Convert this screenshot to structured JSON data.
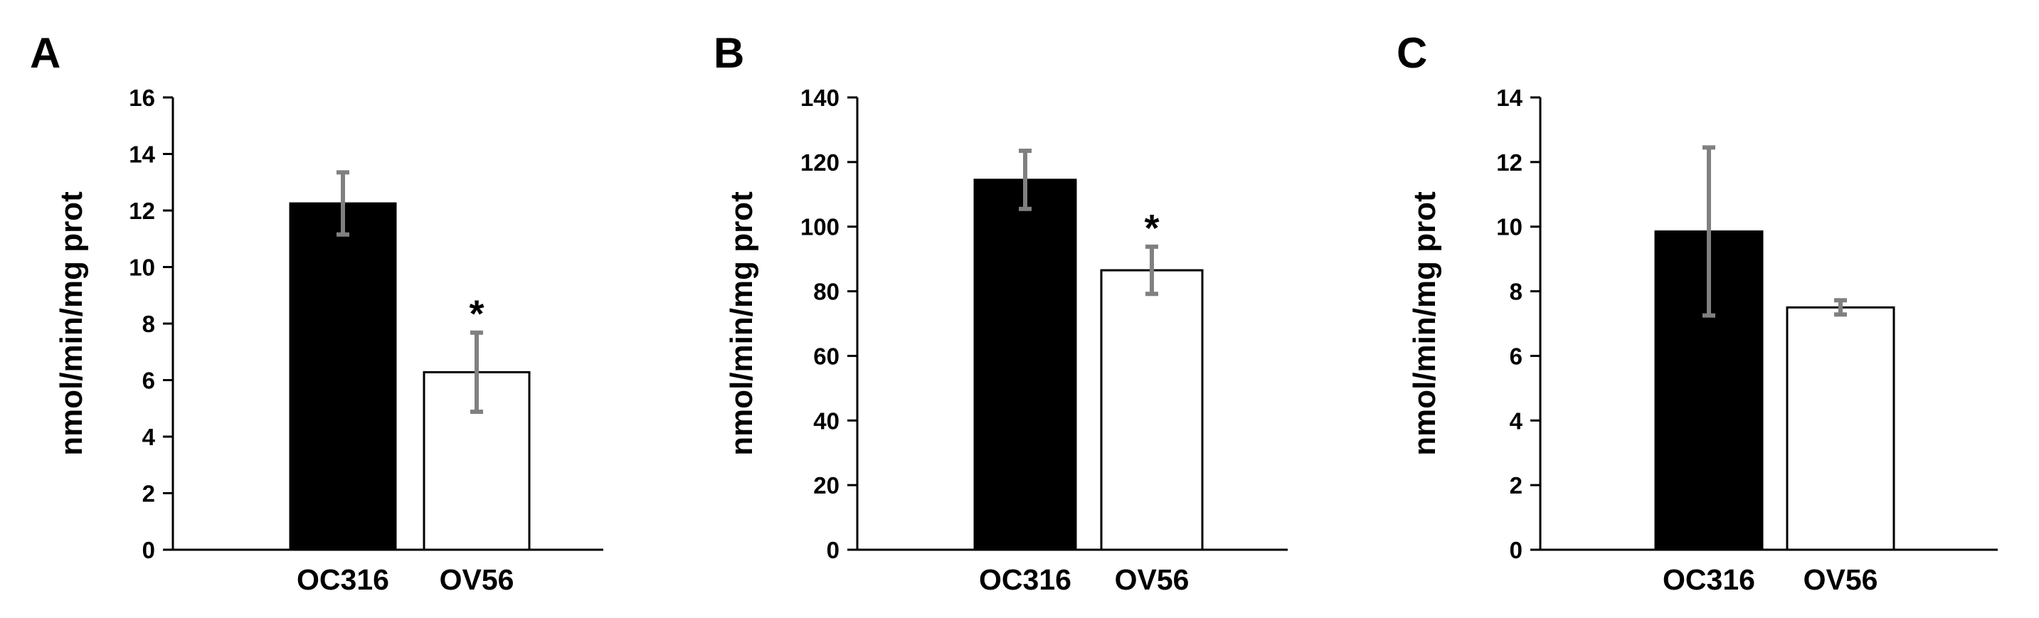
{
  "chart_data": [
    {
      "panel": "A",
      "type": "bar",
      "categories": [
        "OC316",
        "OV56"
      ],
      "values": [
        12.25,
        6.28
      ],
      "errors": [
        1.1,
        1.4
      ],
      "annotations": [
        "",
        "*"
      ],
      "ylabel": "nmol/min/mg prot",
      "ylim": [
        0,
        16
      ],
      "yticks": [
        0,
        2,
        4,
        6,
        8,
        10,
        12,
        14,
        16
      ],
      "bar_colors": [
        "#000000",
        "#ffffff"
      ],
      "error_color": "#808080",
      "grid": false
    },
    {
      "panel": "B",
      "type": "bar",
      "categories": [
        "OC316",
        "OV56"
      ],
      "values": [
        114.5,
        86.5
      ],
      "errors": [
        9.0,
        7.3
      ],
      "annotations": [
        "",
        "*"
      ],
      "ylabel": "nmol/min/mg prot",
      "ylim": [
        0,
        140
      ],
      "yticks": [
        0,
        20,
        40,
        60,
        80,
        100,
        120,
        140
      ],
      "bar_colors": [
        "#000000",
        "#ffffff"
      ],
      "error_color": "#808080",
      "grid": false
    },
    {
      "panel": "C",
      "type": "bar",
      "categories": [
        "OC316",
        "OV56"
      ],
      "values": [
        9.85,
        7.5
      ],
      "errors": [
        2.6,
        0.22
      ],
      "annotations": [
        "",
        ""
      ],
      "ylabel": "nmol/min/mg prot",
      "ylim": [
        0,
        14
      ],
      "yticks": [
        0,
        2,
        4,
        6,
        8,
        10,
        12,
        14
      ],
      "bar_colors": [
        "#000000",
        "#ffffff"
      ],
      "error_color": "#808080",
      "grid": false
    }
  ]
}
